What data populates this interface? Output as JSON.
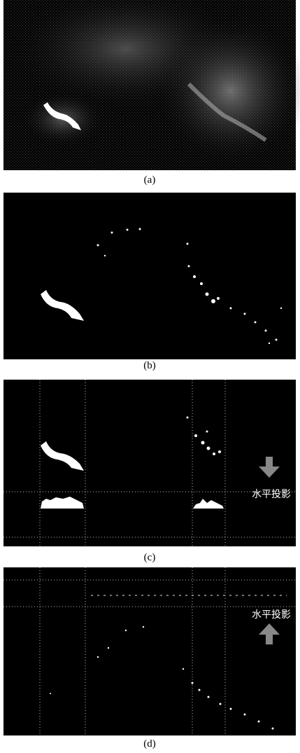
{
  "panels": [
    {
      "label": "(a)"
    },
    {
      "label": "(b)"
    },
    {
      "label": "(c)",
      "annotation": "水平投影"
    },
    {
      "label": "(d)",
      "annotation": "水平投影"
    }
  ]
}
